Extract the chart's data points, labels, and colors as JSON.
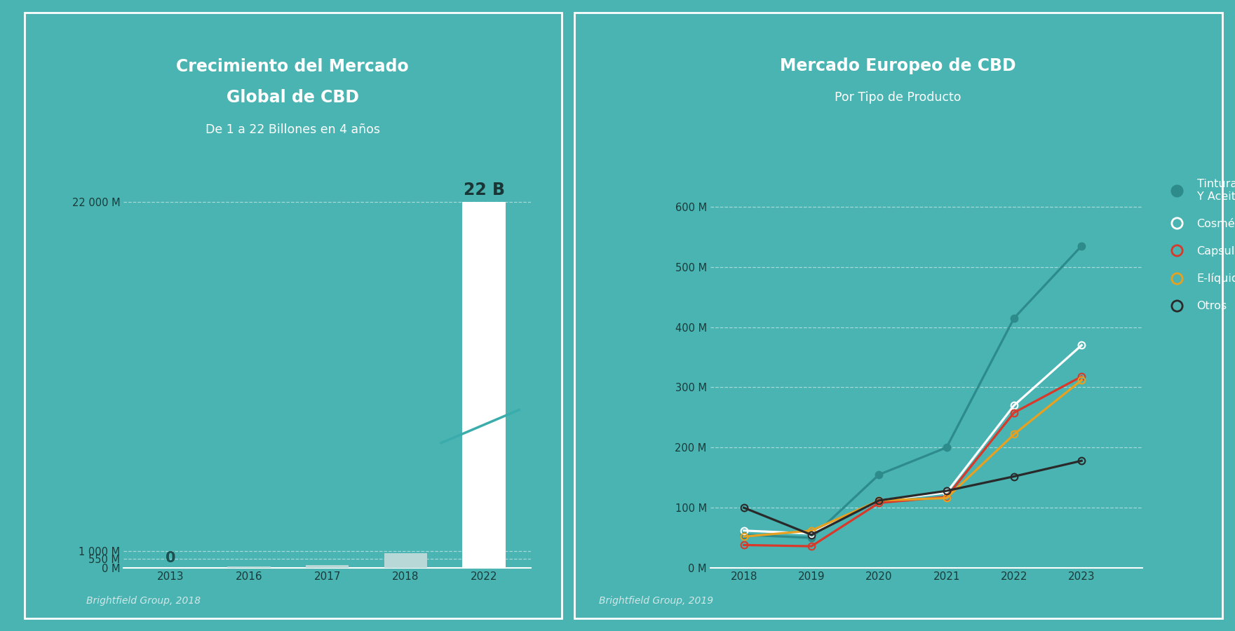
{
  "bg_color": "#49b4b2",
  "left_title_line1": "Crecimiento del Mercado",
  "left_title_line2": "Global de CBD",
  "left_subtitle": "De 1 a 22 Billones en 4 años",
  "left_source": "Brightfield Group, 2018",
  "left_bar_categories": [
    "2013",
    "2016",
    "2017",
    "2018",
    "2022"
  ],
  "left_bar_values": [
    0,
    90,
    170,
    900,
    22000
  ],
  "left_bar_colors": [
    "#49b4b2",
    "#b8d8d8",
    "#b8d8d8",
    "#b8d8d8",
    "#ffffff"
  ],
  "left_yticks": [
    0,
    550,
    1000,
    22000
  ],
  "left_ytick_labels": [
    "0 M",
    "550 M",
    "1 000 M",
    "22 000 M"
  ],
  "left_annotation_2013": "0",
  "left_annotation_2022": "22 B",
  "right_title": "Mercado Europeo de CBD",
  "right_subtitle": "Por Tipo de Producto",
  "right_source": "Brightfield Group, 2019",
  "right_years": [
    2018,
    2019,
    2020,
    2021,
    2022,
    2023
  ],
  "right_yticks": [
    0,
    100,
    200,
    300,
    400,
    500,
    600
  ],
  "right_ytick_labels": [
    "0 M",
    "100 M",
    "200 M",
    "300 M",
    "400 M",
    "500 M",
    "600 M"
  ],
  "series": [
    {
      "name": "Tinturas\nY Aceites",
      "color": "#2e8b8b",
      "marker_fill": "#2e8b8b",
      "open_marker": false,
      "values": [
        55,
        50,
        155,
        200,
        415,
        535
      ]
    },
    {
      "name": "Cosméticos",
      "color": "#ffffff",
      "marker_fill": "#ffffff",
      "open_marker": true,
      "values": [
        62,
        57,
        112,
        125,
        270,
        370
      ]
    },
    {
      "name": "Capsulas",
      "color": "#d9392a",
      "marker_fill": "#d9392a",
      "open_marker": true,
      "values": [
        38,
        36,
        108,
        118,
        258,
        318
      ]
    },
    {
      "name": "E-líquidos",
      "color": "#e8a020",
      "marker_fill": "#e8a020",
      "open_marker": true,
      "values": [
        52,
        62,
        112,
        116,
        222,
        312
      ]
    },
    {
      "name": "Otros",
      "color": "#2a2a2a",
      "marker_fill": "#2a2a2a",
      "open_marker": true,
      "values": [
        100,
        55,
        112,
        128,
        152,
        178
      ]
    }
  ],
  "title_color": "#ffffff",
  "subtitle_color": "#ffffff",
  "source_color": "#d0e8e8",
  "tick_label_color": "#1a3a3a",
  "annotation_0_color": "#1a5050",
  "annotation_22_color": "#1a3535",
  "grid_color": "#ffffff",
  "bottom_line_color": "#ffffff",
  "border_color": "#ffffff",
  "diagonal_line_color": "#3aacac"
}
